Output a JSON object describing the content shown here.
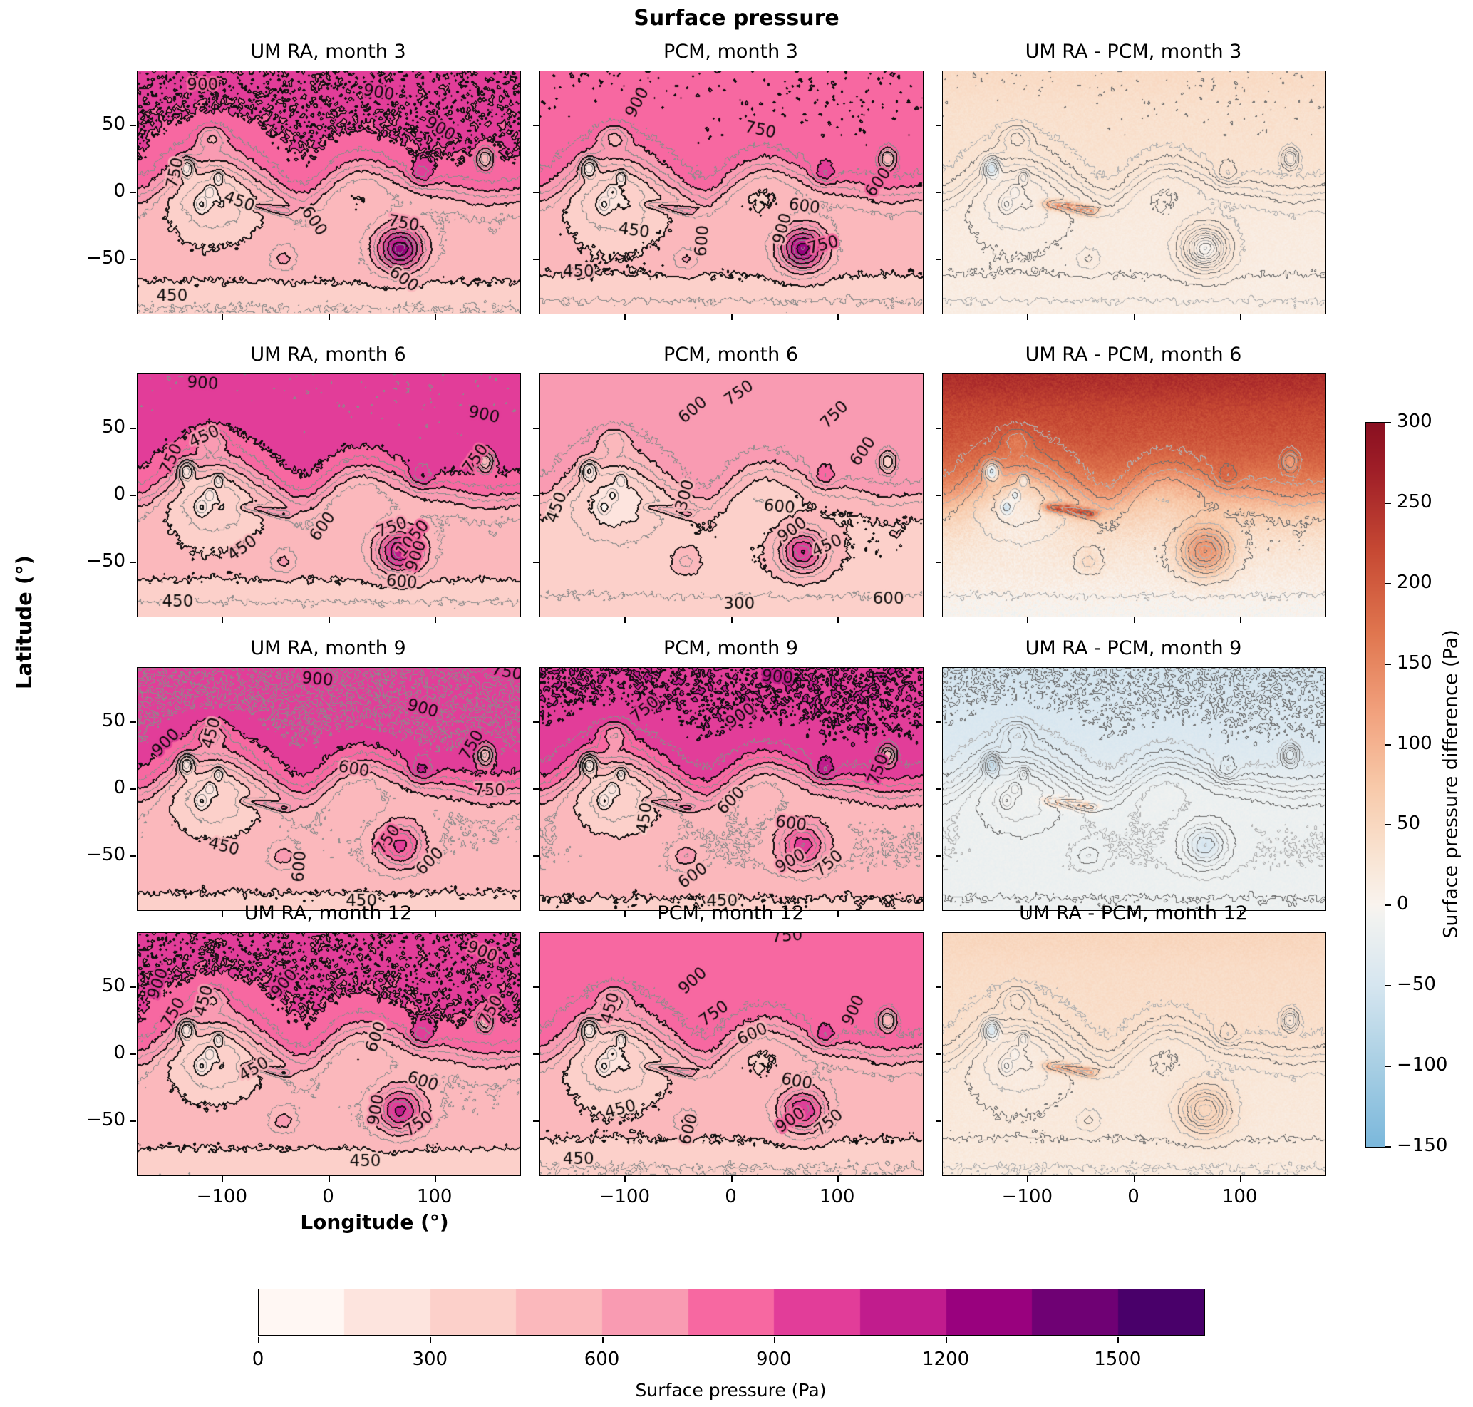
{
  "figure": {
    "suptitle": "Surface pressure",
    "xlabel": "Longitude (°)",
    "ylabel": "Latitude (°)"
  },
  "axis": {
    "x_tick_labels": [
      "−100",
      "0",
      "100"
    ],
    "x_tick_lons": [
      -100,
      0,
      100
    ],
    "y_tick_labels": [
      "50",
      "0",
      "−50"
    ],
    "y_tick_lats": [
      50,
      0,
      -50
    ]
  },
  "panels": [
    {
      "id": "um-3",
      "title": "UM RA, month 3",
      "row": 0,
      "col": 0,
      "kind": "pressure",
      "model": "UM",
      "month": 3,
      "labels": [
        [
          900,
          0.17,
          0.06,
          0
        ],
        [
          900,
          0.63,
          0.09,
          10
        ],
        [
          900,
          0.79,
          0.24,
          30
        ],
        [
          750,
          0.1,
          0.42,
          -78
        ],
        [
          450,
          0.265,
          0.54,
          20
        ],
        [
          600,
          0.46,
          0.62,
          55
        ],
        [
          750,
          0.695,
          0.63,
          10
        ],
        [
          600,
          0.695,
          0.86,
          35
        ],
        [
          450,
          0.09,
          0.93,
          0
        ]
      ]
    },
    {
      "id": "pcm-3",
      "title": "PCM, month 3",
      "row": 0,
      "col": 1,
      "kind": "pressure",
      "model": "PCM",
      "month": 3,
      "labels": [
        [
          900,
          0.255,
          0.13,
          -62
        ],
        [
          750,
          0.575,
          0.245,
          12
        ],
        [
          600,
          0.885,
          0.46,
          -55
        ],
        [
          600,
          0.69,
          0.56,
          8
        ],
        [
          900,
          0.635,
          0.65,
          -75
        ],
        [
          750,
          0.74,
          0.72,
          -15
        ],
        [
          450,
          0.245,
          0.66,
          8
        ],
        [
          600,
          0.425,
          0.7,
          -85
        ],
        [
          450,
          0.1,
          0.83,
          0
        ]
      ]
    },
    {
      "id": "diff-3",
      "title": "UM RA - PCM, month 3",
      "row": 0,
      "col": 2,
      "kind": "diff",
      "model": "UM-PCM",
      "month": 3,
      "labels": []
    },
    {
      "id": "um-6",
      "title": "UM RA, month 6",
      "row": 1,
      "col": 0,
      "kind": "pressure",
      "model": "UM",
      "month": 6,
      "labels": [
        [
          900,
          0.17,
          0.04,
          4
        ],
        [
          450,
          0.175,
          0.26,
          -25
        ],
        [
          750,
          0.09,
          0.35,
          -65
        ],
        [
          900,
          0.905,
          0.17,
          12
        ],
        [
          750,
          0.885,
          0.35,
          -55
        ],
        [
          600,
          0.485,
          0.63,
          -55
        ],
        [
          750,
          0.665,
          0.635,
          -20
        ],
        [
          1050,
          0.72,
          0.68,
          -50
        ],
        [
          900,
          0.73,
          0.75,
          -70
        ],
        [
          600,
          0.69,
          0.86,
          5
        ],
        [
          450,
          0.275,
          0.72,
          -35
        ],
        [
          450,
          0.105,
          0.94,
          0
        ]
      ]
    },
    {
      "id": "pcm-6",
      "title": "PCM, month 6",
      "row": 1,
      "col": 1,
      "kind": "pressure",
      "model": "PCM",
      "month": 6,
      "labels": [
        [
          600,
          0.4,
          0.15,
          -40
        ],
        [
          750,
          0.52,
          0.08,
          -35
        ],
        [
          750,
          0.77,
          0.17,
          -45
        ],
        [
          600,
          0.845,
          0.32,
          -55
        ],
        [
          300,
          0.38,
          0.5,
          -75
        ],
        [
          450,
          0.045,
          0.55,
          -70
        ],
        [
          600,
          0.625,
          0.55,
          5
        ],
        [
          900,
          0.66,
          0.645,
          -35
        ],
        [
          450,
          0.75,
          0.71,
          -25
        ],
        [
          300,
          0.52,
          0.95,
          0
        ],
        [
          600,
          0.91,
          0.93,
          0
        ]
      ]
    },
    {
      "id": "diff-6",
      "title": "UM RA - PCM, month 6",
      "row": 1,
      "col": 2,
      "kind": "diff",
      "model": "UM-PCM",
      "month": 6,
      "labels": []
    },
    {
      "id": "um-9",
      "title": "UM RA, month 9",
      "row": 2,
      "col": 0,
      "kind": "pressure",
      "model": "UM",
      "month": 9,
      "labels": [
        [
          900,
          0.47,
          0.05,
          5
        ],
        [
          750,
          0.965,
          0.02,
          10
        ],
        [
          900,
          0.745,
          0.17,
          15
        ],
        [
          900,
          0.075,
          0.31,
          -45
        ],
        [
          450,
          0.195,
          0.27,
          -75
        ],
        [
          600,
          0.565,
          0.42,
          10
        ],
        [
          750,
          0.875,
          0.32,
          -60
        ],
        [
          750,
          0.92,
          0.51,
          0
        ],
        [
          450,
          0.225,
          0.74,
          15
        ],
        [
          600,
          0.425,
          0.82,
          -85
        ],
        [
          750,
          0.655,
          0.71,
          -55
        ],
        [
          600,
          0.765,
          0.8,
          -45
        ],
        [
          450,
          0.585,
          0.965,
          0
        ]
      ]
    },
    {
      "id": "pcm-9",
      "title": "PCM, month 9",
      "row": 2,
      "col": 1,
      "kind": "pressure",
      "model": "PCM",
      "month": 9,
      "labels": [
        [
          900,
          0.62,
          0.04,
          5
        ],
        [
          750,
          0.275,
          0.175,
          -40
        ],
        [
          900,
          0.525,
          0.2,
          -35
        ],
        [
          750,
          0.885,
          0.42,
          -70
        ],
        [
          600,
          0.5,
          0.55,
          -45
        ],
        [
          450,
          0.275,
          0.62,
          -82
        ],
        [
          600,
          0.655,
          0.645,
          8
        ],
        [
          600,
          0.4,
          0.86,
          -35
        ],
        [
          900,
          0.655,
          0.8,
          -30
        ],
        [
          750,
          0.755,
          0.81,
          -40
        ],
        [
          450,
          0.475,
          0.965,
          0
        ]
      ]
    },
    {
      "id": "diff-9",
      "title": "UM RA - PCM, month 9",
      "row": 2,
      "col": 2,
      "kind": "diff",
      "model": "UM-PCM",
      "month": 9,
      "labels": []
    },
    {
      "id": "um-12",
      "title": "UM RA, month 12",
      "row": 3,
      "col": 0,
      "kind": "pressure",
      "model": "UM",
      "month": 12,
      "labels": [
        [
          900,
          0.055,
          0.21,
          -70
        ],
        [
          750,
          0.095,
          0.33,
          -60
        ],
        [
          450,
          0.175,
          0.28,
          -75
        ],
        [
          900,
          0.385,
          0.21,
          -50
        ],
        [
          900,
          0.9,
          0.08,
          22
        ],
        [
          750,
          0.925,
          0.32,
          -60
        ],
        [
          600,
          0.625,
          0.43,
          -70
        ],
        [
          450,
          0.305,
          0.565,
          -30
        ],
        [
          600,
          0.745,
          0.615,
          18
        ],
        [
          900,
          0.625,
          0.73,
          -80
        ],
        [
          750,
          0.735,
          0.79,
          -35
        ],
        [
          450,
          0.595,
          0.945,
          0
        ]
      ]
    },
    {
      "id": "pcm-12",
      "title": "PCM, month 12",
      "row": 3,
      "col": 1,
      "kind": "pressure",
      "model": "PCM",
      "month": 12,
      "labels": [
        [
          750,
          0.645,
          0.015,
          -5
        ],
        [
          900,
          0.4,
          0.2,
          -42
        ],
        [
          450,
          0.185,
          0.31,
          -75
        ],
        [
          750,
          0.455,
          0.335,
          -35
        ],
        [
          600,
          0.555,
          0.42,
          -25
        ],
        [
          900,
          0.82,
          0.32,
          -65
        ],
        [
          600,
          0.67,
          0.615,
          10
        ],
        [
          900,
          0.655,
          0.775,
          -35
        ],
        [
          750,
          0.755,
          0.785,
          -40
        ],
        [
          450,
          0.21,
          0.73,
          -15
        ],
        [
          600,
          0.39,
          0.81,
          -75
        ],
        [
          450,
          0.1,
          0.935,
          0
        ]
      ]
    },
    {
      "id": "diff-12",
      "title": "UM RA - PCM, month 12",
      "row": 3,
      "col": 2,
      "kind": "diff",
      "model": "UM-PCM",
      "month": 12,
      "labels": []
    }
  ],
  "pressure_colorbar": {
    "label": "Surface pressure (Pa)",
    "tick_labels": [
      "0",
      "300",
      "600",
      "900",
      "1200",
      "1500"
    ],
    "tick_values": [
      0,
      300,
      600,
      900,
      1200,
      1500
    ],
    "vmin": 0,
    "vmax": 1650,
    "bin_size": 150,
    "colors": [
      "#fff7f3",
      "#fde4de",
      "#fcd0ca",
      "#fbb8bc",
      "#f99bb2",
      "#f768a1",
      "#e23d99",
      "#c11c8d",
      "#99017e",
      "#6f0174",
      "#49006a"
    ]
  },
  "diff_colorbar": {
    "label": "Surface pressure difference (Pa)",
    "tick_labels": [
      "300",
      "250",
      "200",
      "150",
      "100",
      "50",
      "0",
      "−50",
      "−100",
      "−150"
    ],
    "tick_values": [
      300,
      250,
      200,
      150,
      100,
      50,
      0,
      -50,
      -100,
      -150
    ],
    "vmin": -150,
    "vmax": 300,
    "stops": [
      [
        -150,
        "#7bb8dc"
      ],
      [
        -100,
        "#a8cfe4"
      ],
      [
        -50,
        "#d6e6f0"
      ],
      [
        -10,
        "#f0f2f1"
      ],
      [
        0,
        "#f9f4ef"
      ],
      [
        30,
        "#fae5d4"
      ],
      [
        75,
        "#f8c9a9"
      ],
      [
        120,
        "#f2a27e"
      ],
      [
        170,
        "#e0764f"
      ],
      [
        220,
        "#c74a34"
      ],
      [
        270,
        "#a01f28"
      ],
      [
        300,
        "#8a1021"
      ]
    ]
  },
  "chart_data": {
    "type": "heatmap",
    "subtype": "filled-contour map grid, 4 rows x 3 columns",
    "title": "Surface pressure",
    "xlabel": "Longitude (°)",
    "ylabel": "Latitude (°)",
    "x_range": [
      -180,
      180
    ],
    "y_range": [
      -90,
      90
    ],
    "x_ticks": [
      -100,
      0,
      100
    ],
    "y_ticks": [
      50,
      0,
      -50
    ],
    "grid_rows_months": [
      3,
      6,
      9,
      12
    ],
    "grid_cols_models": [
      "UM RA",
      "PCM",
      "UM RA - PCM"
    ],
    "labeled_contour_levels_pa": [
      300,
      450,
      600,
      750,
      900,
      1050
    ],
    "pressure_scale": {
      "units": "Pa",
      "vmin": 0,
      "vmax": 1650,
      "ticks": [
        0,
        300,
        600,
        900,
        1200,
        1500
      ],
      "colormap": "white-pink-magenta-purple (RdPu), 11 discrete bins of 150 Pa"
    },
    "difference_scale": {
      "units": "Pa",
      "vmin": -150,
      "vmax": 300,
      "ticks": [
        300,
        250,
        200,
        150,
        100,
        50,
        0,
        -50,
        -100,
        -150
      ],
      "colormap": "blue-white-red (RdBu reversed)"
    },
    "panel_estimates_pa": [
      {
        "panel": "UM RA, month 3",
        "north_lowlands": 950,
        "southern_highlands": 520,
        "tharsis_min": 300,
        "olympus_summit": 120,
        "hellas_max": 1400,
        "south_polar_edge": 430
      },
      {
        "panel": "PCM, month 3",
        "north_lowlands": 900,
        "southern_highlands": 500,
        "tharsis_min": 290,
        "hellas_max": 1380
      },
      {
        "panel": "UM RA - PCM, month 3",
        "global_mean": 25,
        "valles_marineris_peaks": 150,
        "hellas_center": -10,
        "north": 35
      },
      {
        "panel": "UM RA, month 6",
        "north_lowlands": 960,
        "southern_highlands": 500,
        "tharsis_min": 300,
        "hellas_max": 1210,
        "south_polar_edge": 420
      },
      {
        "panel": "PCM, month 6",
        "north_lowlands": 750,
        "southern_highlands": 460,
        "tharsis_min": 280,
        "hellas_max": 1060
      },
      {
        "panel": "UM RA - PCM, month 6",
        "global_mean": 140,
        "north": 240,
        "south": 75,
        "hellas_ring": 210
      },
      {
        "panel": "UM RA, month 9",
        "north_lowlands": 990,
        "southern_highlands": 520,
        "tharsis_min": 320,
        "hellas_max": 950,
        "south_polar_edge": 450
      },
      {
        "panel": "PCM, month 9",
        "north_lowlands": 1010,
        "southern_highlands": 530,
        "hellas_max": 960
      },
      {
        "panel": "UM RA - PCM, month 9",
        "global_mean": -20,
        "north": -60,
        "hellas_center": -45
      },
      {
        "panel": "UM RA, month 12",
        "north_lowlands": 930,
        "southern_highlands": 510,
        "tharsis_min": 310,
        "hellas_max": 1100,
        "south_polar_edge": 430
      },
      {
        "panel": "PCM, month 12",
        "north_lowlands": 890,
        "southern_highlands": 490,
        "hellas_max": 1050
      },
      {
        "panel": "UM RA - PCM, month 12",
        "global_mean": 35,
        "north": 45,
        "hellas_ring": 85
      }
    ]
  }
}
